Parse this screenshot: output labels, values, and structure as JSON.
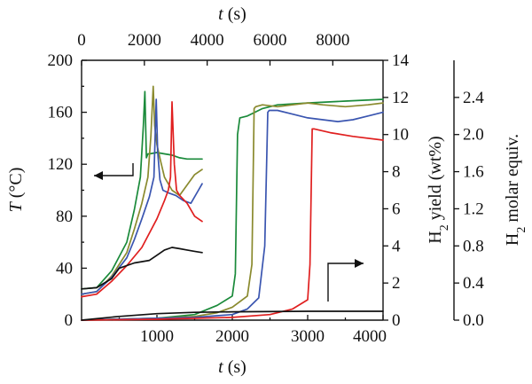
{
  "colors": {
    "green": "#1a8a3a",
    "olive": "#8a8a2e",
    "blue": "#3a55b0",
    "red": "#e01f1f",
    "black": "#111111"
  },
  "chart_data": {
    "type": "line",
    "main": {
      "xlabel_var": "t",
      "xlabel_unit": " (s)",
      "ylabel_var": "T",
      "ylabel_unit": " (°C)",
      "ylabel_right_prefix": "H",
      "ylabel_right_sub": "2",
      "ylabel_right_suffix": " yield (wt%)",
      "ylabel_far_prefix": "H",
      "ylabel_far_sub": "2",
      "ylabel_far_suffix": " molar equiv.",
      "xlim": [
        0,
        4000
      ],
      "ylim_left": [
        0,
        200
      ],
      "ylim_right": [
        0,
        14
      ],
      "ylim_far": [
        0,
        2.8
      ],
      "x_ticks": [
        "1000",
        "2000",
        "3000",
        "4000"
      ],
      "x_tick_values": [
        1000,
        2000,
        3000,
        4000
      ],
      "y_left_ticks": [
        "0",
        "40",
        "80",
        "120",
        "160",
        "200"
      ],
      "y_left_tick_values": [
        0,
        40,
        80,
        120,
        160,
        200
      ],
      "y_right_ticks": [
        "0",
        "2",
        "4",
        "6",
        "8",
        "10",
        "12",
        "14"
      ],
      "y_right_tick_values": [
        0,
        2,
        4,
        6,
        8,
        10,
        12,
        14
      ],
      "y_far_ticks": [
        "0.0",
        "0.4",
        "0.8",
        "1.2",
        "1.6",
        "2.0",
        "2.4"
      ],
      "y_far_tick_values": [
        0,
        0.4,
        0.8,
        1.2,
        1.6,
        2.0,
        2.4
      ],
      "top_xlabel_var": "t",
      "top_xlabel_unit": " (s)",
      "top_xlim": [
        0,
        9600
      ],
      "top_x_ticks": [
        "0",
        "2000",
        "4000",
        "6000",
        "8000"
      ],
      "top_x_tick_values": [
        0,
        2000,
        4000,
        6000,
        8000
      ]
    },
    "temperature_series": [
      {
        "color": "green",
        "x": [
          0,
          200,
          400,
          600,
          700,
          780,
          820,
          840,
          860,
          880,
          900,
          1000,
          1100,
          1200,
          1300,
          1400,
          1500,
          1600
        ],
        "y": [
          24,
          25,
          38,
          60,
          85,
          110,
          150,
          176,
          125,
          128,
          128,
          129,
          128,
          127,
          125,
          124,
          124,
          124
        ]
      },
      {
        "color": "olive",
        "x": [
          0,
          200,
          400,
          600,
          700,
          800,
          880,
          920,
          950,
          970,
          1000,
          1050,
          1100,
          1200,
          1300,
          1400,
          1500,
          1600
        ],
        "y": [
          20,
          22,
          34,
          52,
          70,
          90,
          110,
          142,
          180,
          150,
          135,
          122,
          110,
          100,
          96,
          104,
          112,
          116
        ]
      },
      {
        "color": "blue",
        "x": [
          0,
          200,
          400,
          600,
          700,
          800,
          900,
          960,
          990,
          1010,
          1040,
          1080,
          1150,
          1250,
          1350,
          1450,
          1550,
          1600
        ],
        "y": [
          20,
          22,
          33,
          48,
          62,
          78,
          95,
          110,
          170,
          130,
          108,
          100,
          98,
          96,
          92,
          90,
          100,
          105
        ]
      },
      {
        "color": "red",
        "x": [
          0,
          200,
          400,
          600,
          800,
          1000,
          1100,
          1150,
          1180,
          1200,
          1230,
          1260,
          1300,
          1400,
          1500,
          1600
        ],
        "y": [
          18,
          20,
          30,
          42,
          56,
          78,
          92,
          100,
          110,
          168,
          120,
          100,
          96,
          90,
          80,
          76
        ]
      },
      {
        "color": "black",
        "x": [
          0,
          200,
          400,
          500,
          700,
          900,
          1000,
          1100,
          1200,
          1300,
          1400,
          1500,
          1600
        ],
        "y": [
          24,
          25,
          32,
          40,
          44,
          46,
          50,
          54,
          56,
          55,
          54,
          53,
          52
        ]
      }
    ],
    "yield_series": [
      {
        "color": "green",
        "x": [
          0,
          1000,
          1500,
          1800,
          2000,
          2040,
          2070,
          2100,
          2200,
          2400,
          2600,
          3000,
          3500,
          4000
        ],
        "y": [
          0,
          0.1,
          0.3,
          0.8,
          1.3,
          2.5,
          10,
          10.9,
          11.0,
          11.4,
          11.6,
          11.7,
          11.8,
          11.9
        ]
      },
      {
        "color": "olive",
        "x": [
          0,
          1000,
          1500,
          1800,
          2000,
          2200,
          2260,
          2290,
          2310,
          2400,
          2600,
          2800,
          3000,
          3200,
          3500,
          3800,
          4000
        ],
        "y": [
          0,
          0.1,
          0.2,
          0.4,
          0.7,
          1.3,
          3,
          11.4,
          11.5,
          11.6,
          11.5,
          11.6,
          11.7,
          11.6,
          11.5,
          11.6,
          11.7
        ]
      },
      {
        "color": "blue",
        "x": [
          0,
          1000,
          1500,
          2000,
          2200,
          2350,
          2430,
          2470,
          2490,
          2600,
          2800,
          3000,
          3200,
          3400,
          3600,
          3800,
          4000
        ],
        "y": [
          0,
          0.1,
          0.15,
          0.3,
          0.6,
          1.2,
          4,
          11.2,
          11.3,
          11.3,
          11.1,
          10.9,
          10.8,
          10.7,
          10.8,
          11.0,
          11.2
        ]
      },
      {
        "color": "red",
        "x": [
          0,
          1000,
          2000,
          2500,
          2800,
          3000,
          3030,
          3060,
          3090,
          3300,
          3600,
          4000
        ],
        "y": [
          0,
          0.05,
          0.15,
          0.3,
          0.6,
          1.1,
          3,
          10.3,
          10.3,
          10.1,
          9.9,
          9.7
        ]
      },
      {
        "color": "black",
        "x": [
          0,
          500,
          1000,
          1500,
          2000,
          3000,
          4000
        ],
        "y": [
          0,
          0.2,
          0.35,
          0.42,
          0.45,
          0.48,
          0.48
        ]
      }
    ]
  }
}
